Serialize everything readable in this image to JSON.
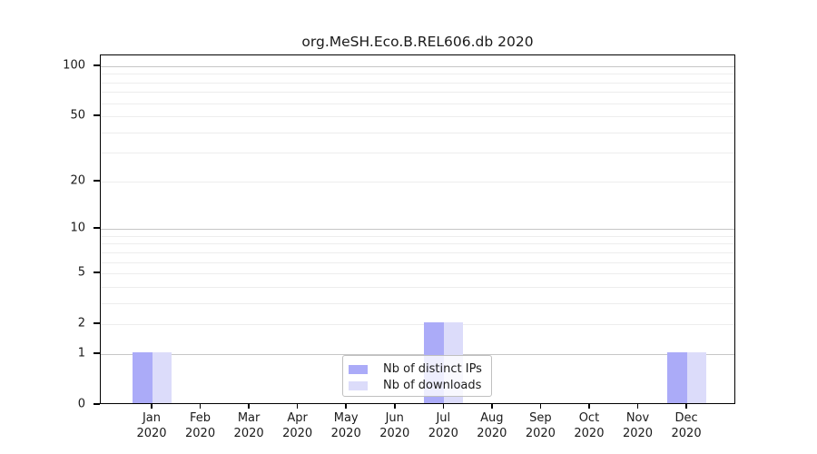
{
  "title": "org.MeSH.Eco.B.REL606.db 2020",
  "legend": {
    "items": [
      {
        "label": "Nb of distinct IPs",
        "color": "#ababf8"
      },
      {
        "label": "Nb of downloads",
        "color": "#dcdcfa"
      }
    ]
  },
  "chart_data": {
    "type": "bar",
    "title": "org.MeSH.Eco.B.REL606.db 2020",
    "categories": [
      "Jan",
      "Feb",
      "Mar",
      "Apr",
      "May",
      "Jun",
      "Jul",
      "Aug",
      "Sep",
      "Oct",
      "Nov",
      "Dec"
    ],
    "year": "2020",
    "series": [
      {
        "name": "Nb of distinct IPs",
        "color": "#ababf8",
        "values": [
          1,
          0,
          0,
          0,
          0,
          0,
          2,
          0,
          0,
          0,
          0,
          1
        ]
      },
      {
        "name": "Nb of downloads",
        "color": "#dcdcfa",
        "values": [
          1,
          0,
          0,
          0,
          0,
          0,
          2,
          0,
          0,
          0,
          0,
          1
        ]
      }
    ],
    "yscale": "log1p",
    "ylim": [
      0,
      116
    ],
    "yticks": [
      0,
      1,
      2,
      5,
      10,
      20,
      50,
      100
    ],
    "y_gridlines_major": [
      1,
      10,
      100
    ],
    "y_gridlines_minor": [
      2,
      3,
      4,
      5,
      6,
      7,
      8,
      9,
      20,
      30,
      40,
      50,
      60,
      70,
      80,
      90
    ],
    "grid": "horizontal",
    "legend_position": "lower center",
    "colors": {
      "major_grid": "#c6c6c6",
      "minor_grid": "#ededed",
      "spine": "#000000"
    }
  }
}
